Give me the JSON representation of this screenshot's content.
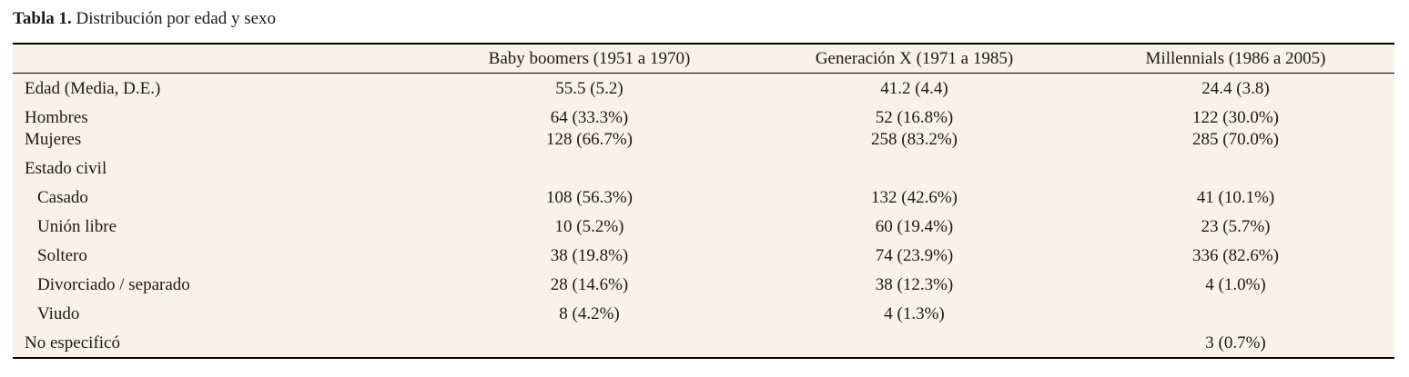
{
  "caption": {
    "label": "Tabla 1.",
    "text": "Distribución por edad y sexo"
  },
  "table": {
    "columns": [
      "",
      "Baby boomers (1951 a 1970)",
      "Generación X (1971 a 1985)",
      "Millennials (1986 a 2005)"
    ],
    "rows": [
      {
        "label": "Edad (Media, D.E.)",
        "values": [
          "55.5 (5.2)",
          "41.2 (4.4)",
          "24.4 (3.8)"
        ]
      },
      {
        "label": "Hombres",
        "values": [
          "64 (33.3%)",
          "52 (16.8%)",
          "122 (30.0%)"
        ]
      },
      {
        "label": "Mujeres",
        "values": [
          "128 (66.7%)",
          "258 (83.2%)",
          "285 (70.0%)"
        ]
      },
      {
        "label": "Estado civil",
        "values": [
          "",
          "",
          ""
        ]
      },
      {
        "label": "Casado",
        "values": [
          "108 (56.3%)",
          "132 (42.6%)",
          "41 (10.1%)"
        ]
      },
      {
        "label": "Unión libre",
        "values": [
          "10 (5.2%)",
          "60 (19.4%)",
          "23 (5.7%)"
        ]
      },
      {
        "label": "Soltero",
        "values": [
          "38 (19.8%)",
          "74 (23.9%)",
          "336 (82.6%)"
        ]
      },
      {
        "label": "Divorciado / separado",
        "values": [
          "28 (14.6%)",
          "38 (12.3%)",
          "4 (1.0%)"
        ]
      },
      {
        "label": "Viudo",
        "values": [
          "8 (4.2%)",
          "4 (1.3%)",
          ""
        ]
      },
      {
        "label": "No especificó",
        "values": [
          "",
          "",
          "3 (0.7%)"
        ]
      }
    ]
  },
  "colors": {
    "table_background": "#f9f2e9",
    "page_background": "#ffffff",
    "rule": "#000000",
    "text": "#1b1a18"
  }
}
